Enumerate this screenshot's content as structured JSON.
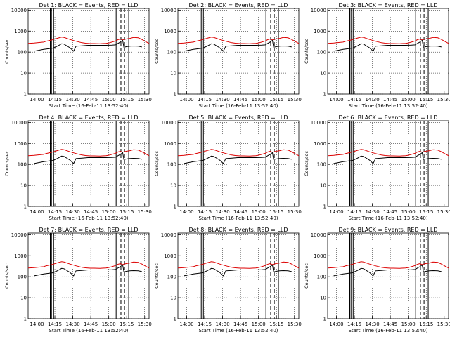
{
  "colors": {
    "events": "#000000",
    "lld": "#dd0000",
    "frame": "#000000",
    "grid": "#000000"
  },
  "layout_grid": {
    "rows": 3,
    "cols": 3
  },
  "x_tick_labels": [
    "14:00",
    "14:15",
    "14:30",
    "14:45",
    "15:00",
    "15:15",
    "15:30"
  ],
  "x_label": "Start Time (16-Feb-11 13:52:40)",
  "y_label": "Counts/sec",
  "y_tick_labels": [
    "1",
    "10",
    "100",
    "1000",
    "10000"
  ],
  "chart_data": [
    {
      "type": "line",
      "title": "Det 1: BLACK = Events, RED = LLD",
      "panel": 1
    },
    {
      "type": "line",
      "title": "Det 2: BLACK = Events, RED = LLD",
      "panel": 2
    },
    {
      "type": "line",
      "title": "Det 3: BLACK = Events, RED = LLD",
      "panel": 3
    },
    {
      "type": "line",
      "title": "Det 4: BLACK = Events, RED = LLD",
      "panel": 4
    },
    {
      "type": "line",
      "title": "Det 5: BLACK = Events, RED = LLD",
      "panel": 5
    },
    {
      "type": "line",
      "title": "Det 6: BLACK = Events, RED = LLD",
      "panel": 6
    },
    {
      "type": "line",
      "title": "Det 7: BLACK = Events, RED = LLD",
      "panel": 7
    },
    {
      "type": "line",
      "title": "Det 8: BLACK = Events, RED = LLD",
      "panel": 8
    },
    {
      "type": "line",
      "title": "Det 9: BLACK = Events, RED = LLD",
      "panel": 9
    }
  ],
  "shared_axes": {
    "xlim_minutes_since_1352_40": [
      0,
      101
    ],
    "ylim": [
      1,
      12000
    ],
    "yscale": "log",
    "grid": true,
    "solid_markers_min": [
      18.5,
      19.5,
      21.3,
      73.5,
      84.0
    ],
    "dashed_markers_min": [
      77.5,
      80.5
    ],
    "series": [
      {
        "name": "LLD",
        "color": "#dd0000",
        "x": [
          0,
          5,
          10,
          13,
          15,
          20,
          25,
          28,
          30,
          35,
          40,
          45,
          48,
          52,
          55,
          60,
          62,
          65,
          67,
          70,
          73,
          75,
          77,
          79,
          80,
          82,
          85,
          88,
          92,
          95,
          98,
          101
        ],
        "y": [
          260,
          270,
          290,
          300,
          330,
          380,
          470,
          520,
          500,
          400,
          330,
          280,
          265,
          255,
          255,
          250,
          255,
          260,
          270,
          300,
          340,
          390,
          420,
          380,
          400,
          420,
          450,
          500,
          480,
          400,
          320,
          260
        ]
      },
      {
        "name": "Events",
        "color": "#000000",
        "x": [
          5,
          10,
          13,
          17,
          21,
          25,
          28,
          30,
          35,
          38,
          40,
          45,
          50,
          55,
          60,
          65,
          70,
          73,
          75,
          77,
          79,
          80,
          82,
          85,
          88,
          92,
          95
        ],
        "y": [
          110,
          125,
          135,
          145,
          155,
          200,
          250,
          240,
          160,
          110,
          190,
          200,
          210,
          210,
          210,
          210,
          215,
          220,
          260,
          300,
          360,
          170,
          180,
          190,
          195,
          190,
          175
        ]
      }
    ]
  }
}
